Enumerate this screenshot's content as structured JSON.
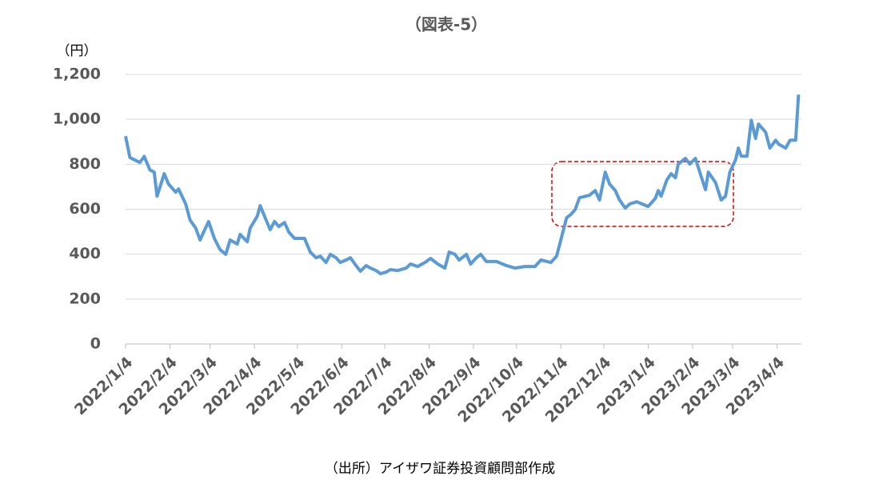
{
  "chart_data": {
    "type": "line",
    "title": "（図表-5）",
    "y_unit_label": "（円）",
    "source": "（出所）アイザワ証券投資顧問部作成",
    "x": [
      "2022/1/4",
      "2022/1/7",
      "2022/1/14",
      "2022/1/17",
      "2022/1/21",
      "2022/1/24",
      "2022/1/26",
      "2022/1/31",
      "2022/2/3",
      "2022/2/8",
      "2022/2/10",
      "2022/2/15",
      "2022/2/18",
      "2022/2/22",
      "2022/2/25",
      "2022/2/28",
      "2022/3/3",
      "2022/3/7",
      "2022/3/11",
      "2022/3/15",
      "2022/3/18",
      "2022/3/23",
      "2022/3/25",
      "2022/3/30",
      "2022/4/1",
      "2022/4/6",
      "2022/4/8",
      "2022/4/11",
      "2022/4/15",
      "2022/4/18",
      "2022/4/21",
      "2022/4/25",
      "2022/4/28",
      "2022/5/2",
      "2022/5/9",
      "2022/5/13",
      "2022/5/17",
      "2022/5/20",
      "2022/5/24",
      "2022/5/27",
      "2022/5/31",
      "2022/6/3",
      "2022/6/7",
      "2022/6/10",
      "2022/6/14",
      "2022/6/17",
      "2022/6/21",
      "2022/6/24",
      "2022/6/28",
      "2022/7/1",
      "2022/7/5",
      "2022/7/8",
      "2022/7/13",
      "2022/7/19",
      "2022/7/22",
      "2022/7/27",
      "2022/8/1",
      "2022/8/5",
      "2022/8/10",
      "2022/8/15",
      "2022/8/18",
      "2022/8/22",
      "2022/8/25",
      "2022/8/30",
      "2022/9/2",
      "2022/9/6",
      "2022/9/9",
      "2022/9/13",
      "2022/9/20",
      "2022/9/27",
      "2022/10/3",
      "2022/10/10",
      "2022/10/17",
      "2022/10/21",
      "2022/10/28",
      "2022/11/1",
      "2022/11/4",
      "2022/11/8",
      "2022/11/11",
      "2022/11/14",
      "2022/11/17",
      "2022/11/24",
      "2022/11/28",
      "2022/12/1",
      "2022/12/5",
      "2022/12/8",
      "2022/12/12",
      "2022/12/15",
      "2022/12/19",
      "2022/12/22",
      "2022/12/27",
      "2023/1/4",
      "2023/1/9",
      "2023/1/11",
      "2023/1/13",
      "2023/1/17",
      "2023/1/20",
      "2023/1/23",
      "2023/1/25",
      "2023/1/30",
      "2023/2/2",
      "2023/2/6",
      "2023/2/9",
      "2023/2/13",
      "2023/2/15",
      "2023/2/20",
      "2023/2/24",
      "2023/2/27",
      "2023/3/2",
      "2023/3/6",
      "2023/3/8",
      "2023/3/10",
      "2023/3/14",
      "2023/3/17",
      "2023/3/20",
      "2023/3/22",
      "2023/3/27",
      "2023/3/30",
      "2023/4/3",
      "2023/4/5",
      "2023/4/10",
      "2023/4/13",
      "2023/4/17",
      "2023/4/19"
    ],
    "series": [
      {
        "color": "#5b9bd5",
        "values": [
          925,
          830,
          808,
          835,
          775,
          765,
          658,
          758,
          712,
          676,
          690,
          623,
          552,
          516,
          463,
          505,
          545,
          470,
          420,
          399,
          463,
          445,
          488,
          455,
          516,
          569,
          616,
          569,
          509,
          545,
          523,
          541,
          498,
          470,
          470,
          409,
          384,
          391,
          363,
          399,
          384,
          363,
          374,
          384,
          349,
          324,
          349,
          338,
          327,
          313,
          320,
          331,
          327,
          338,
          356,
          345,
          363,
          381,
          356,
          338,
          409,
          399,
          374,
          399,
          356,
          384,
          399,
          367,
          367,
          349,
          338,
          345,
          345,
          374,
          363,
          391,
          463,
          562,
          577,
          598,
          651,
          662,
          683,
          641,
          765,
          712,
          683,
          641,
          605,
          623,
          633,
          612,
          648,
          683,
          658,
          730,
          758,
          740,
          801,
          826,
          801,
          826,
          765,
          687,
          765,
          719,
          641,
          658,
          765,
          819,
          872,
          836,
          836,
          996,
          915,
          979,
          943,
          872,
          907,
          890,
          872,
          907,
          907,
          1110
        ]
      }
    ],
    "xlim": [
      "2022/1/4",
      "2023/4/21"
    ],
    "xticks": [
      "2022/1/4",
      "2022/2/4",
      "2022/3/4",
      "2022/4/4",
      "2022/5/4",
      "2022/6/4",
      "2022/7/4",
      "2022/8/4",
      "2022/9/4",
      "2022/10/4",
      "2022/11/4",
      "2022/12/4",
      "2023/1/4",
      "2023/2/4",
      "2023/3/4",
      "2023/4/4"
    ],
    "ylim": [
      0,
      1200
    ],
    "yticks": [
      0,
      200,
      400,
      600,
      800,
      {
        "value": 1000,
        "label": "1,000"
      },
      {
        "value": 1200,
        "label": "1,200"
      }
    ],
    "grid": true
  }
}
